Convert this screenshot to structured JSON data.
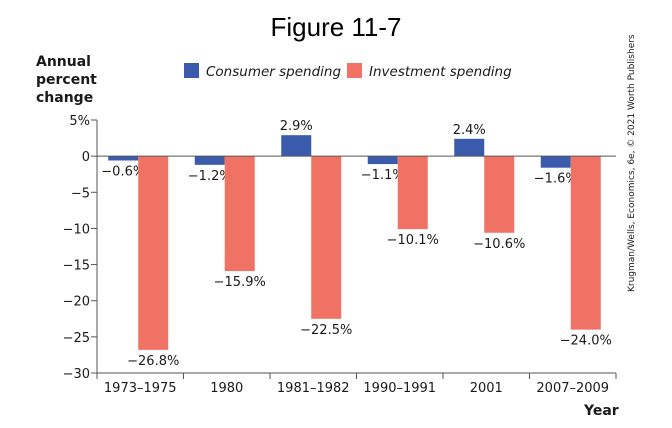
{
  "chart_data": {
    "type": "bar",
    "title": "Figure 11-7",
    "ylabel": [
      "Annual",
      "percent",
      "change"
    ],
    "xlabel": "Year",
    "categories": [
      "1973–1975",
      "1980",
      "1981–1982",
      "1990–1991",
      "2001",
      "2007–2009"
    ],
    "series": [
      {
        "name": "Consumer spending",
        "color": "#3a5bab",
        "values": [
          -0.6,
          -1.2,
          2.9,
          -1.1,
          2.4,
          -1.6
        ],
        "labels": [
          "−0.6%",
          "−1.2%",
          "2.9%",
          "−1.1%",
          "2.4%",
          "−1.6%"
        ]
      },
      {
        "name": "Investment spending",
        "color": "#f07264",
        "values": [
          -26.8,
          -15.9,
          -22.5,
          -10.1,
          -10.6,
          -24.0
        ],
        "labels": [
          "−26.8%",
          "−15.9%",
          "−22.5%",
          "−10.1%",
          "−10.6%",
          "−24.0%"
        ]
      }
    ],
    "ylim": [
      -30,
      5
    ],
    "yticks": [
      5,
      0,
      -5,
      -10,
      -15,
      -20,
      -25,
      -30
    ],
    "ytick_labels": [
      "5%",
      "0",
      "−5",
      "−10",
      "−15",
      "−20",
      "−25",
      "−30"
    ],
    "legend_position": "top",
    "grid": false,
    "credit": "Krugman/Wells, Economics, 6e, © 2021 Worth Publishers"
  }
}
